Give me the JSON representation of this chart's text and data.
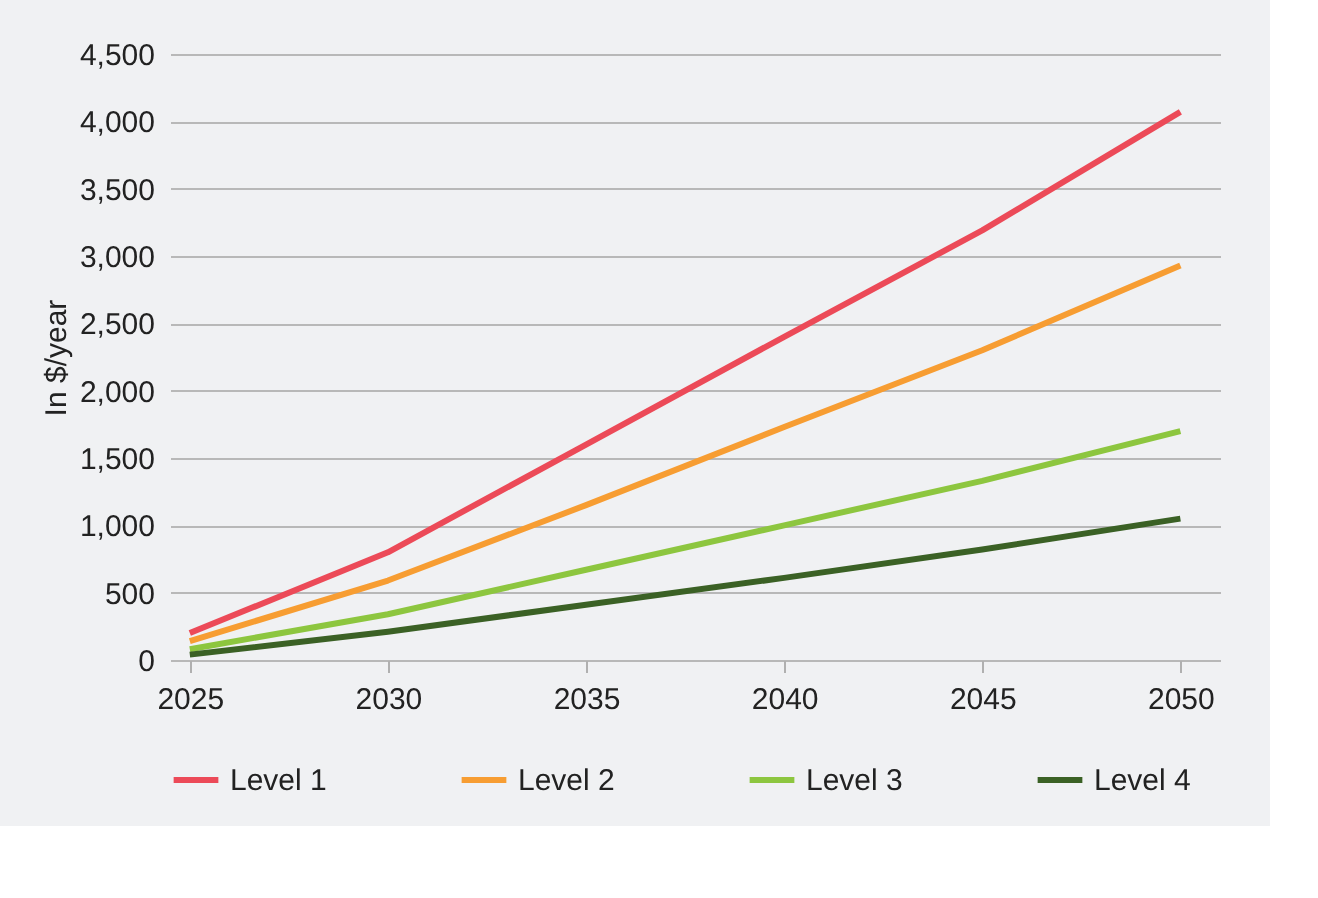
{
  "chart_data": {
    "type": "line",
    "ylabel": "In $/year",
    "x": [
      2025,
      2030,
      2035,
      2040,
      2045,
      2050
    ],
    "series": [
      {
        "name": "Level 1",
        "color": "#ec4a58",
        "values": [
          200,
          800,
          1600,
          2400,
          3190,
          4070
        ]
      },
      {
        "name": "Level 2",
        "color": "#f79d32",
        "values": [
          140,
          590,
          1150,
          1730,
          2300,
          2930
        ]
      },
      {
        "name": "Level 3",
        "color": "#8dc63f",
        "values": [
          80,
          340,
          670,
          1000,
          1330,
          1700
        ]
      },
      {
        "name": "Level 4",
        "color": "#3b6125",
        "values": [
          40,
          210,
          410,
          610,
          820,
          1050
        ]
      }
    ],
    "xlim": [
      2024.5,
      2051
    ],
    "xticks": [
      2025,
      2030,
      2035,
      2040,
      2045,
      2050
    ],
    "ylim": [
      0,
      4500
    ],
    "yticks": [
      0,
      500,
      {
        "value": 1000,
        "label": "1,000"
      },
      {
        "value": 1500,
        "label": "1,500"
      },
      {
        "value": 2000,
        "label": "2,000"
      },
      {
        "value": 2500,
        "label": "2,500"
      },
      {
        "value": 3000,
        "label": "3,000"
      },
      {
        "value": 3500,
        "label": "3,500"
      },
      {
        "value": 4000,
        "label": "4,000"
      },
      {
        "value": 4500,
        "label": "4,500"
      }
    ],
    "grid": "y",
    "legend": "bottom",
    "marker": "none",
    "line_style": "solid"
  }
}
